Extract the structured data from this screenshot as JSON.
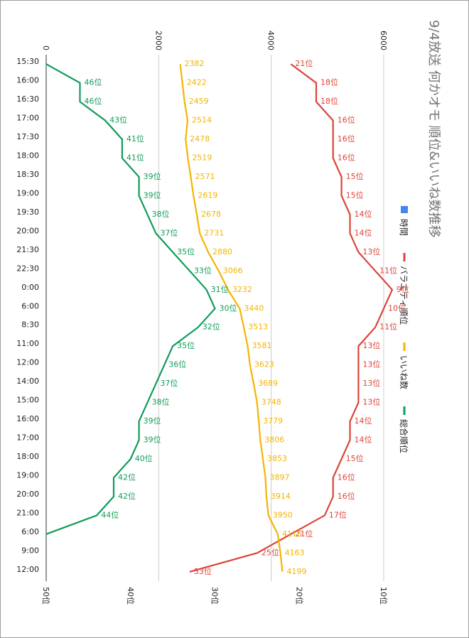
{
  "chart_data": {
    "type": "line",
    "title": "9/4放送 何かオモ 順位&いいね数推移",
    "categories": [
      "15:30",
      "16:00",
      "16:30",
      "17:00",
      "17:30",
      "18:00",
      "18:30",
      "19:00",
      "19:30",
      "20:00",
      "21:30",
      "22:30",
      "0:00",
      "6:00",
      "8:30",
      "11:00",
      "12:00",
      "14:00",
      "15:00",
      "16:00",
      "17:00",
      "18:00",
      "19:00",
      "20:00",
      "21:00",
      "6:00",
      "9:00",
      "12:00"
    ],
    "left_axis": {
      "ticks": [
        "0",
        "2000",
        "4000",
        "6000"
      ],
      "min": 0,
      "max": 6000
    },
    "right_axis": {
      "ticks": [
        "50位",
        "40位",
        "30位",
        "20位",
        "10位"
      ],
      "min": 50,
      "max": 10
    },
    "legend": [
      {
        "name": "時間",
        "color": "#4285f4"
      },
      {
        "name": "バラエティ順位",
        "color": "#db4437"
      },
      {
        "name": "いいね数",
        "color": "#f4b400"
      },
      {
        "name": "総合順位",
        "color": "#0f9d58"
      }
    ],
    "series": [
      {
        "name": "バラエティ順位",
        "color": "#db4437",
        "axis": "right",
        "values": [
          21,
          18,
          18,
          16,
          16,
          16,
          15,
          15,
          14,
          14,
          13,
          11,
          9,
          10,
          11,
          13,
          13,
          13,
          13,
          14,
          14,
          15,
          16,
          16,
          17,
          21,
          25,
          33
        ],
        "labels": [
          "21位",
          "18位",
          "18位",
          "16位",
          "16位",
          "16位",
          "15位",
          "15位",
          "14位",
          "14位",
          "13位",
          "11位",
          "9位",
          "10位",
          "11位",
          "13位",
          "13位",
          "13位",
          "13位",
          "14位",
          "14位",
          "15位",
          "16位",
          "16位",
          "17位",
          "21位",
          "25位",
          "33位"
        ]
      },
      {
        "name": "いいね数",
        "color": "#f4b400",
        "axis": "left",
        "values": [
          2382,
          2422,
          2459,
          2514,
          2478,
          2519,
          2571,
          2619,
          2678,
          2731,
          2880,
          3066,
          3232,
          3440,
          3513,
          3581,
          3623,
          3689,
          3748,
          3779,
          3806,
          3853,
          3897,
          3914,
          3950,
          4116,
          4163,
          4199
        ],
        "labels": [
          "2382",
          "2422",
          "2459",
          "2514",
          "2478",
          "2519",
          "2571",
          "2619",
          "2678",
          "2731",
          "2880",
          "3066",
          "3232",
          "3440",
          "3513",
          "3581",
          "3623",
          "3689",
          "3748",
          "3779",
          "3806",
          "3853",
          "3897",
          "3914",
          "3950",
          "4116",
          "4163",
          "4199"
        ]
      },
      {
        "name": "総合順位",
        "color": "#0f9d58",
        "axis": "right",
        "values": [
          50,
          46,
          46,
          43,
          41,
          41,
          39,
          39,
          38,
          37,
          35,
          33,
          31,
          30,
          32,
          35,
          36,
          37,
          38,
          39,
          39,
          40,
          42,
          42,
          44,
          50,
          null,
          null
        ],
        "labels": [
          "",
          "46位",
          "46位",
          "43位",
          "41位",
          "41位",
          "39位",
          "39位",
          "38位",
          "37位",
          "35位",
          "33位",
          "31位",
          "30位",
          "32位",
          "35位",
          "36位",
          "37位",
          "38位",
          "39位",
          "39位",
          "40位",
          "42位",
          "42位",
          "44位",
          "",
          "",
          ""
        ]
      }
    ]
  }
}
